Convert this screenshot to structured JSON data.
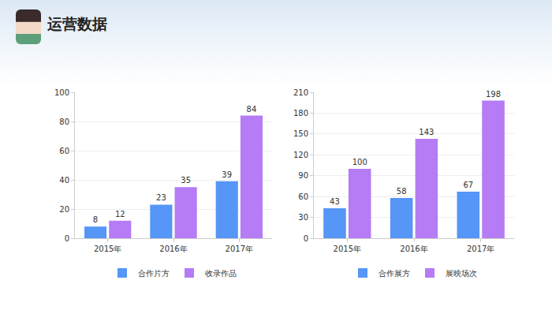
{
  "title": "运营数据",
  "chart_data": [
    {
      "type": "bar",
      "categories": [
        "2015年",
        "2016年",
        "2017年"
      ],
      "series": [
        {
          "name": "合作片方",
          "color": "#5596f7",
          "values": [
            8,
            23,
            39
          ]
        },
        {
          "name": "收录作品",
          "color": "#b57cf5",
          "values": [
            12,
            35,
            84
          ]
        }
      ],
      "ylim": [
        0,
        100
      ],
      "yticks": [
        0,
        20,
        40,
        60,
        80,
        100
      ],
      "grid": true,
      "legend": "bottom",
      "data_labels": true
    },
    {
      "type": "bar",
      "categories": [
        "2015年",
        "2016年",
        "2017年"
      ],
      "series": [
        {
          "name": "合作展方",
          "color": "#5596f7",
          "values": [
            43,
            58,
            67
          ]
        },
        {
          "name": "展映场次",
          "color": "#b57cf5",
          "values": [
            100,
            143,
            198
          ]
        }
      ],
      "ylim": [
        0,
        210
      ],
      "yticks": [
        0,
        30,
        60,
        90,
        120,
        150,
        180,
        210
      ],
      "grid": true,
      "legend": "bottom",
      "data_labels": true
    }
  ]
}
